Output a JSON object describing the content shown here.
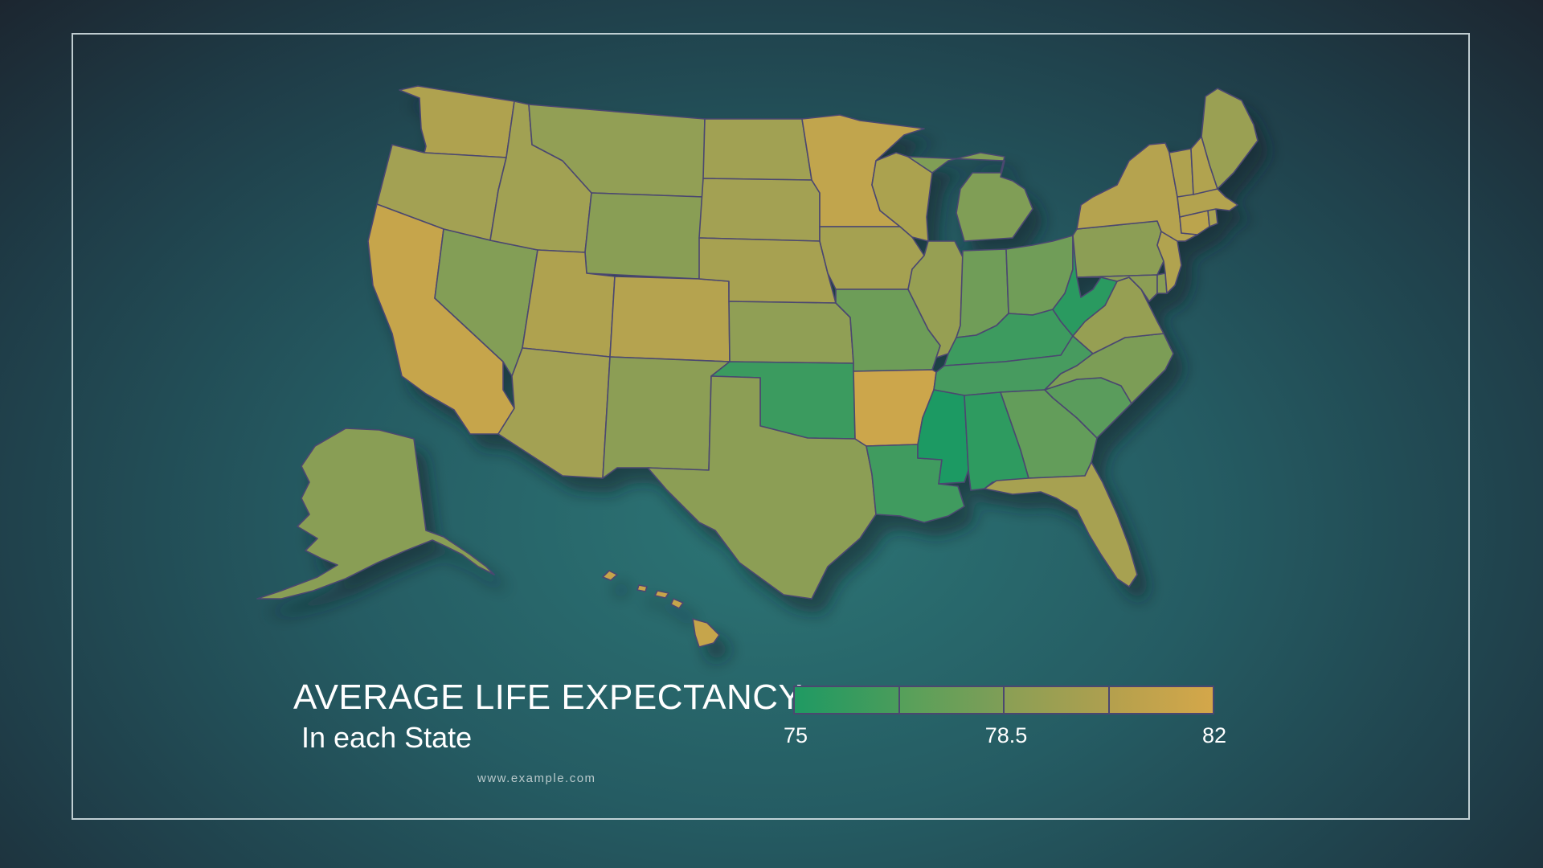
{
  "title": "AVERAGE LIFE EXPECTANCY",
  "subtitle": "In each State",
  "site": "www.example.com",
  "legend": {
    "min_label": "75",
    "mid_label": "78.5",
    "max_label": "82",
    "min": 75,
    "max": 82,
    "bins": [
      {
        "from": "#1f9a63",
        "to": "#4a9c5b"
      },
      {
        "from": "#55a05a",
        "to": "#7f9e57"
      },
      {
        "from": "#8a9f55",
        "to": "#ae9f4f"
      },
      {
        "from": "#b4a04d",
        "to": "#d4a74a"
      }
    ]
  },
  "colors": {
    "low": "#1f9a63",
    "high": "#d4a74a",
    "border": "#4b4770",
    "frame": "#dce8eb"
  },
  "states": {
    "WA": 80.2,
    "OR": 79.6,
    "CA": 81.3,
    "NV": 78.2,
    "ID": 79.5,
    "MT": 78.8,
    "WY": 78.4,
    "UT": 80.2,
    "AZ": 79.6,
    "CO": 80.5,
    "NM": 78.5,
    "ND": 79.5,
    "SD": 79.6,
    "NE": 79.8,
    "KS": 78.7,
    "OK": 75.9,
    "TX": 78.5,
    "MN": 81.1,
    "IA": 79.7,
    "MO": 77.5,
    "AR": 81.6,
    "LA": 76.1,
    "WI": 80.0,
    "IL": 79.0,
    "MI": 78.1,
    "IN": 77.6,
    "OH": 77.6,
    "KY": 76.0,
    "TN": 76.3,
    "MS": 75.0,
    "AL": 75.5,
    "GA": 77.2,
    "FL": 79.8,
    "SC": 76.9,
    "NC": 78.0,
    "VA": 79.0,
    "WV": 75.4,
    "PA": 78.5,
    "NY": 80.5,
    "NJ": 80.3,
    "DE": 78.4,
    "MD": 78.5,
    "CT": 80.8,
    "RI": 79.9,
    "MA": 80.4,
    "VT": 80.2,
    "NH": 80.3,
    "ME": 79.2,
    "AK": 78.4,
    "HI": 81.3
  }
}
